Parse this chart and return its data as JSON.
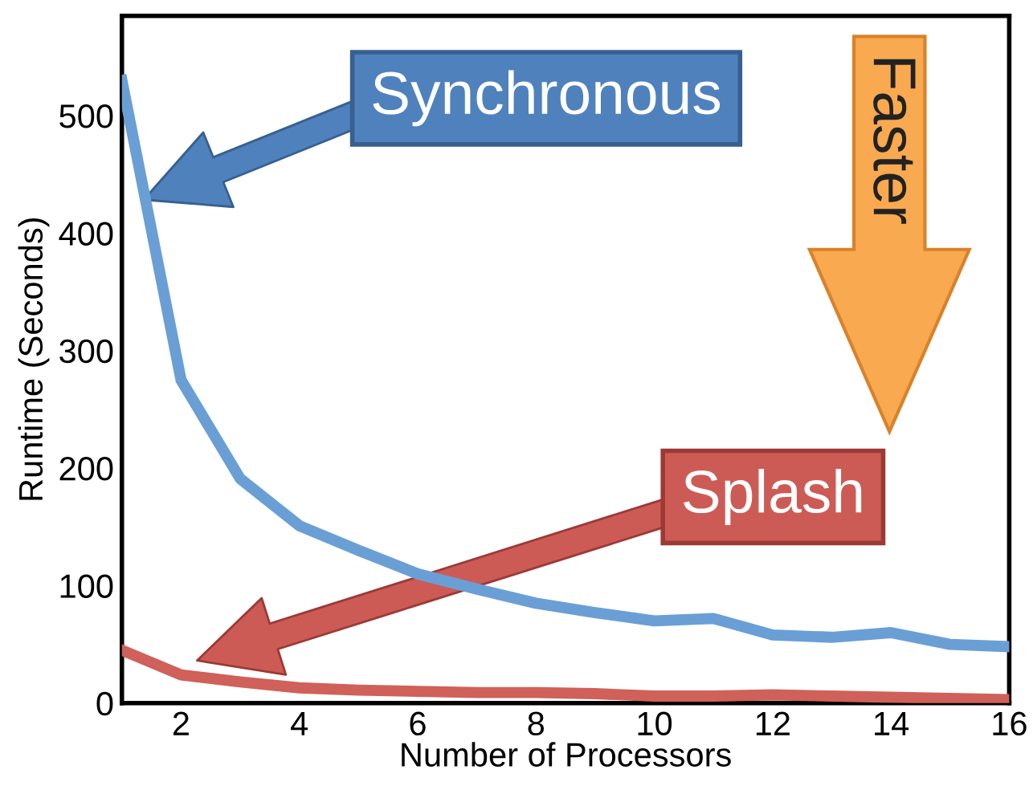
{
  "chart_data": {
    "type": "line",
    "xlabel": "Number of Processors",
    "ylabel": "Runtime (Seconds)",
    "x": [
      1,
      2,
      3,
      4,
      5,
      6,
      7,
      8,
      9,
      10,
      11,
      12,
      13,
      14,
      15,
      16
    ],
    "series": [
      {
        "color": "#6a9fd6",
        "values": [
          530,
          275,
          191,
          151,
          130,
          110,
          97,
          85,
          77,
          70,
          72,
          58,
          56,
          60,
          50,
          48
        ]
      },
      {
        "color": "#d0605a",
        "values": [
          45,
          24,
          18,
          13,
          11,
          10,
          9,
          9,
          8,
          6,
          6,
          7,
          6,
          5,
          4,
          3
        ]
      }
    ],
    "xlim": [
      1,
      16
    ],
    "xticks": [
      2,
      4,
      6,
      8,
      10,
      12,
      14,
      16
    ],
    "ylim": [
      0,
      585
    ],
    "yticks": [
      0,
      100,
      200,
      300,
      400,
      500
    ],
    "grid": false,
    "legend": false,
    "marker": "none",
    "line_style": "solid",
    "annotations": [
      "Synchronous",
      "Splash",
      "Faster"
    ]
  }
}
